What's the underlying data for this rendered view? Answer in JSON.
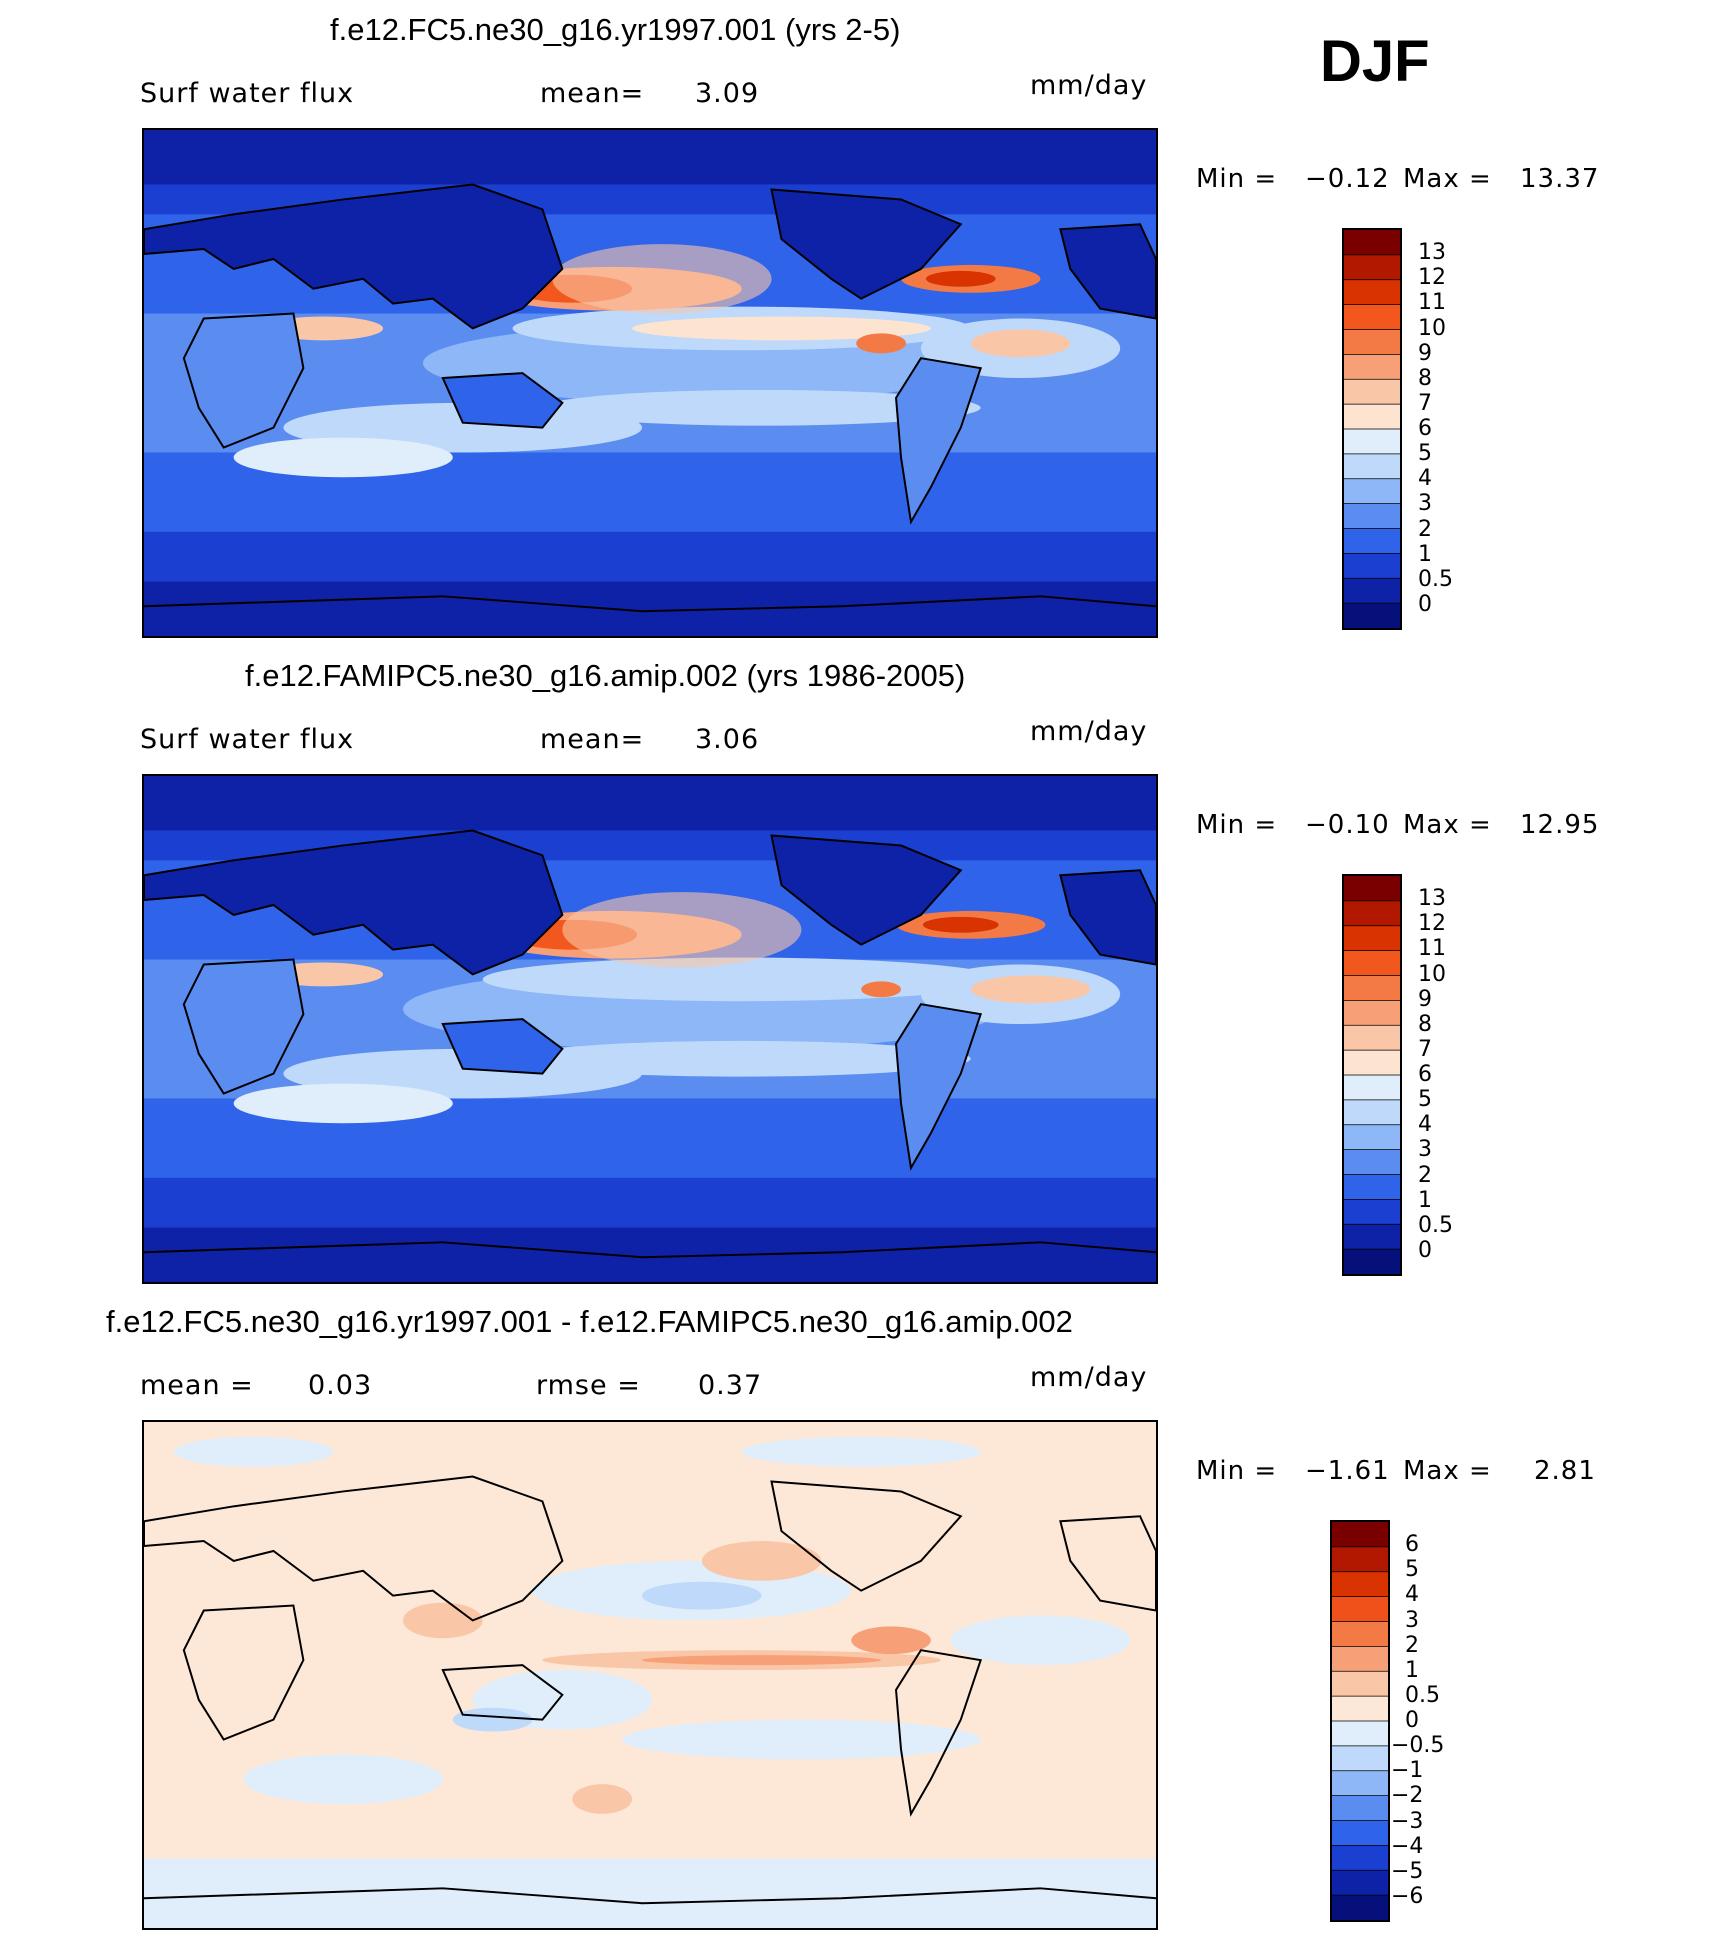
{
  "season": "DJF",
  "panels": [
    {
      "id": "model",
      "title": "f.e12.FC5.ne30_g16.yr1997.001 (yrs 2-5)",
      "field": "Surf water flux",
      "stat1": "mean=",
      "stat1_value": "3.09",
      "stat2": "",
      "stat2_value": "",
      "units": "mm/day",
      "min_label": "Min =",
      "min_value": "−0.12",
      "max_label": "Max =",
      "max_value": "13.37",
      "colorbar_labels": [
        "13",
        "12",
        "11",
        "10",
        "9",
        "8",
        "7",
        "6",
        "5",
        "4",
        "3",
        "2",
        "1",
        "0.5",
        "0"
      ],
      "colorbar_colors": [
        "#7a0000",
        "#b21800",
        "#d83300",
        "#f2581d",
        "#f47a45",
        "#f7a078",
        "#fac6a8",
        "#fde4d0",
        "#dfeefa",
        "#bfd9fb",
        "#8db7f7",
        "#5b8df0",
        "#2f63ea",
        "#1a3fd1",
        "#0d22a6",
        "#06107a"
      ]
    },
    {
      "id": "obs",
      "title": "f.e12.FAMIPC5.ne30_g16.amip.002 (yrs 1986-2005)",
      "field": "Surf water flux",
      "stat1": "mean=",
      "stat1_value": "3.06",
      "stat2": "",
      "stat2_value": "",
      "units": "mm/day",
      "min_label": "Min =",
      "min_value": "−0.10",
      "max_label": "Max =",
      "max_value": "12.95",
      "colorbar_labels": [
        "13",
        "12",
        "11",
        "10",
        "9",
        "8",
        "7",
        "6",
        "5",
        "4",
        "3",
        "2",
        "1",
        "0.5",
        "0"
      ],
      "colorbar_colors": [
        "#7a0000",
        "#b21800",
        "#d83300",
        "#f2581d",
        "#f47a45",
        "#f7a078",
        "#fac6a8",
        "#fde4d0",
        "#dfeefa",
        "#bfd9fb",
        "#8db7f7",
        "#5b8df0",
        "#2f63ea",
        "#1a3fd1",
        "#0d22a6",
        "#06107a"
      ]
    },
    {
      "id": "diff",
      "title": "f.e12.FC5.ne30_g16.yr1997.001 - f.e12.FAMIPC5.ne30_g16.amip.002",
      "field": "",
      "stat1": "mean =",
      "stat1_value": "0.03",
      "stat2": "rmse =",
      "stat2_value": "0.37",
      "units": "mm/day",
      "min_label": "Min =",
      "min_value": "−1.61",
      "max_label": "Max =",
      "max_value": "2.81",
      "colorbar_labels": [
        "6",
        "5",
        "4",
        "3",
        "2",
        "1",
        "0.5",
        "0",
        "−0.5",
        "−1",
        "−2",
        "−3",
        "−4",
        "−5",
        "−6"
      ],
      "colorbar_colors": [
        "#7a0000",
        "#b21800",
        "#d83300",
        "#f0501a",
        "#f47a45",
        "#f7a078",
        "#fac6a8",
        "#fde8d8",
        "#dfeefa",
        "#bfd9fb",
        "#8db7f7",
        "#5b8df0",
        "#2f63ea",
        "#1a3fd1",
        "#0d22a6",
        "#06107a"
      ]
    }
  ]
}
